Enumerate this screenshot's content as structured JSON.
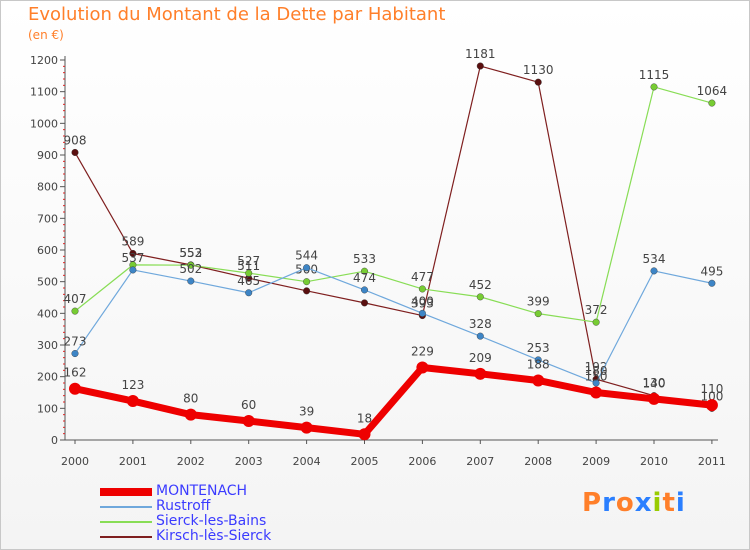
{
  "header": {
    "title": "Evolution du Montant de la Dette par Habitant",
    "unit": "(en €)"
  },
  "logo": {
    "text": "Proxiti",
    "colors": [
      "#ff7f2a",
      "#2a7fff",
      "#ff7f2a",
      "#2a7fff",
      "#99cc00",
      "#ff7f2a",
      "#2a7fff"
    ]
  },
  "chart_data": {
    "type": "line",
    "title": "Evolution du Montant de la Dette par Habitant",
    "ylabel": "(en €)",
    "xlabel": "",
    "categories": [
      "2000",
      "2001",
      "2002",
      "2003",
      "2004",
      "2005",
      "2006",
      "2007",
      "2008",
      "2009",
      "2010",
      "2011"
    ],
    "ylim": [
      0,
      1200
    ],
    "yticks": [
      "0",
      "100",
      "200",
      "300",
      "400",
      "500",
      "600",
      "700",
      "800",
      "900",
      "1000",
      "1100",
      "1200"
    ],
    "grid": false,
    "legend_position": "bottom-left",
    "series": [
      {
        "name": "Kirsch-lès-Sierck",
        "color": "#7f1f1f",
        "dot": "#5a0f0f",
        "values": [
          908,
          589,
          553,
          511,
          471,
          433,
          393,
          1181,
          1130,
          192,
          140,
          100
        ],
        "labels": [
          "908",
          "589",
          "553",
          "511",
          "",
          "",
          "393",
          "1181",
          "1130",
          "192",
          "140",
          "100"
        ]
      },
      {
        "name": "Sierck-les-Bains",
        "color": "#88dd55",
        "dot": "#77cc33",
        "values": [
          407,
          553,
          552,
          527,
          500,
          533,
          477,
          452,
          399,
          372,
          1115,
          1064
        ],
        "labels": [
          "407",
          "",
          "552",
          "527",
          "500",
          "533",
          "477",
          "452",
          "399",
          "372",
          "1115",
          "1064"
        ]
      },
      {
        "name": "Rustroff",
        "color": "#6fa8dc",
        "dot": "#3d85c6",
        "values": [
          273,
          537,
          502,
          465,
          544,
          474,
          400,
          328,
          253,
          180,
          534,
          495
        ],
        "labels": [
          "273",
          "537",
          "502",
          "465",
          "544",
          "474",
          "400",
          "328",
          "253",
          "180",
          "534",
          "495"
        ]
      },
      {
        "name": "MONTENACH",
        "color": "#ee0000",
        "dot": "#ee0000",
        "values": [
          162,
          123,
          80,
          60,
          39,
          18,
          229,
          209,
          188,
          150,
          130,
          110
        ],
        "labels": [
          "162",
          "123",
          "80",
          "60",
          "39",
          "18",
          "229",
          "209",
          "188",
          "150",
          "130",
          "110"
        ]
      }
    ],
    "legend": [
      {
        "name": "MONTENACH",
        "color": "#ee0000",
        "text_color": "#3b3bff",
        "thick": true
      },
      {
        "name": "Rustroff",
        "color": "#6fa8dc",
        "text_color": "#3b3bff",
        "thick": false
      },
      {
        "name": "Sierck-les-Bains",
        "color": "#88dd55",
        "text_color": "#3b3bff",
        "thick": false
      },
      {
        "name": "Kirsch-lès-Sierck",
        "color": "#7f1f1f",
        "text_color": "#3b3bff",
        "thick": false
      }
    ]
  }
}
